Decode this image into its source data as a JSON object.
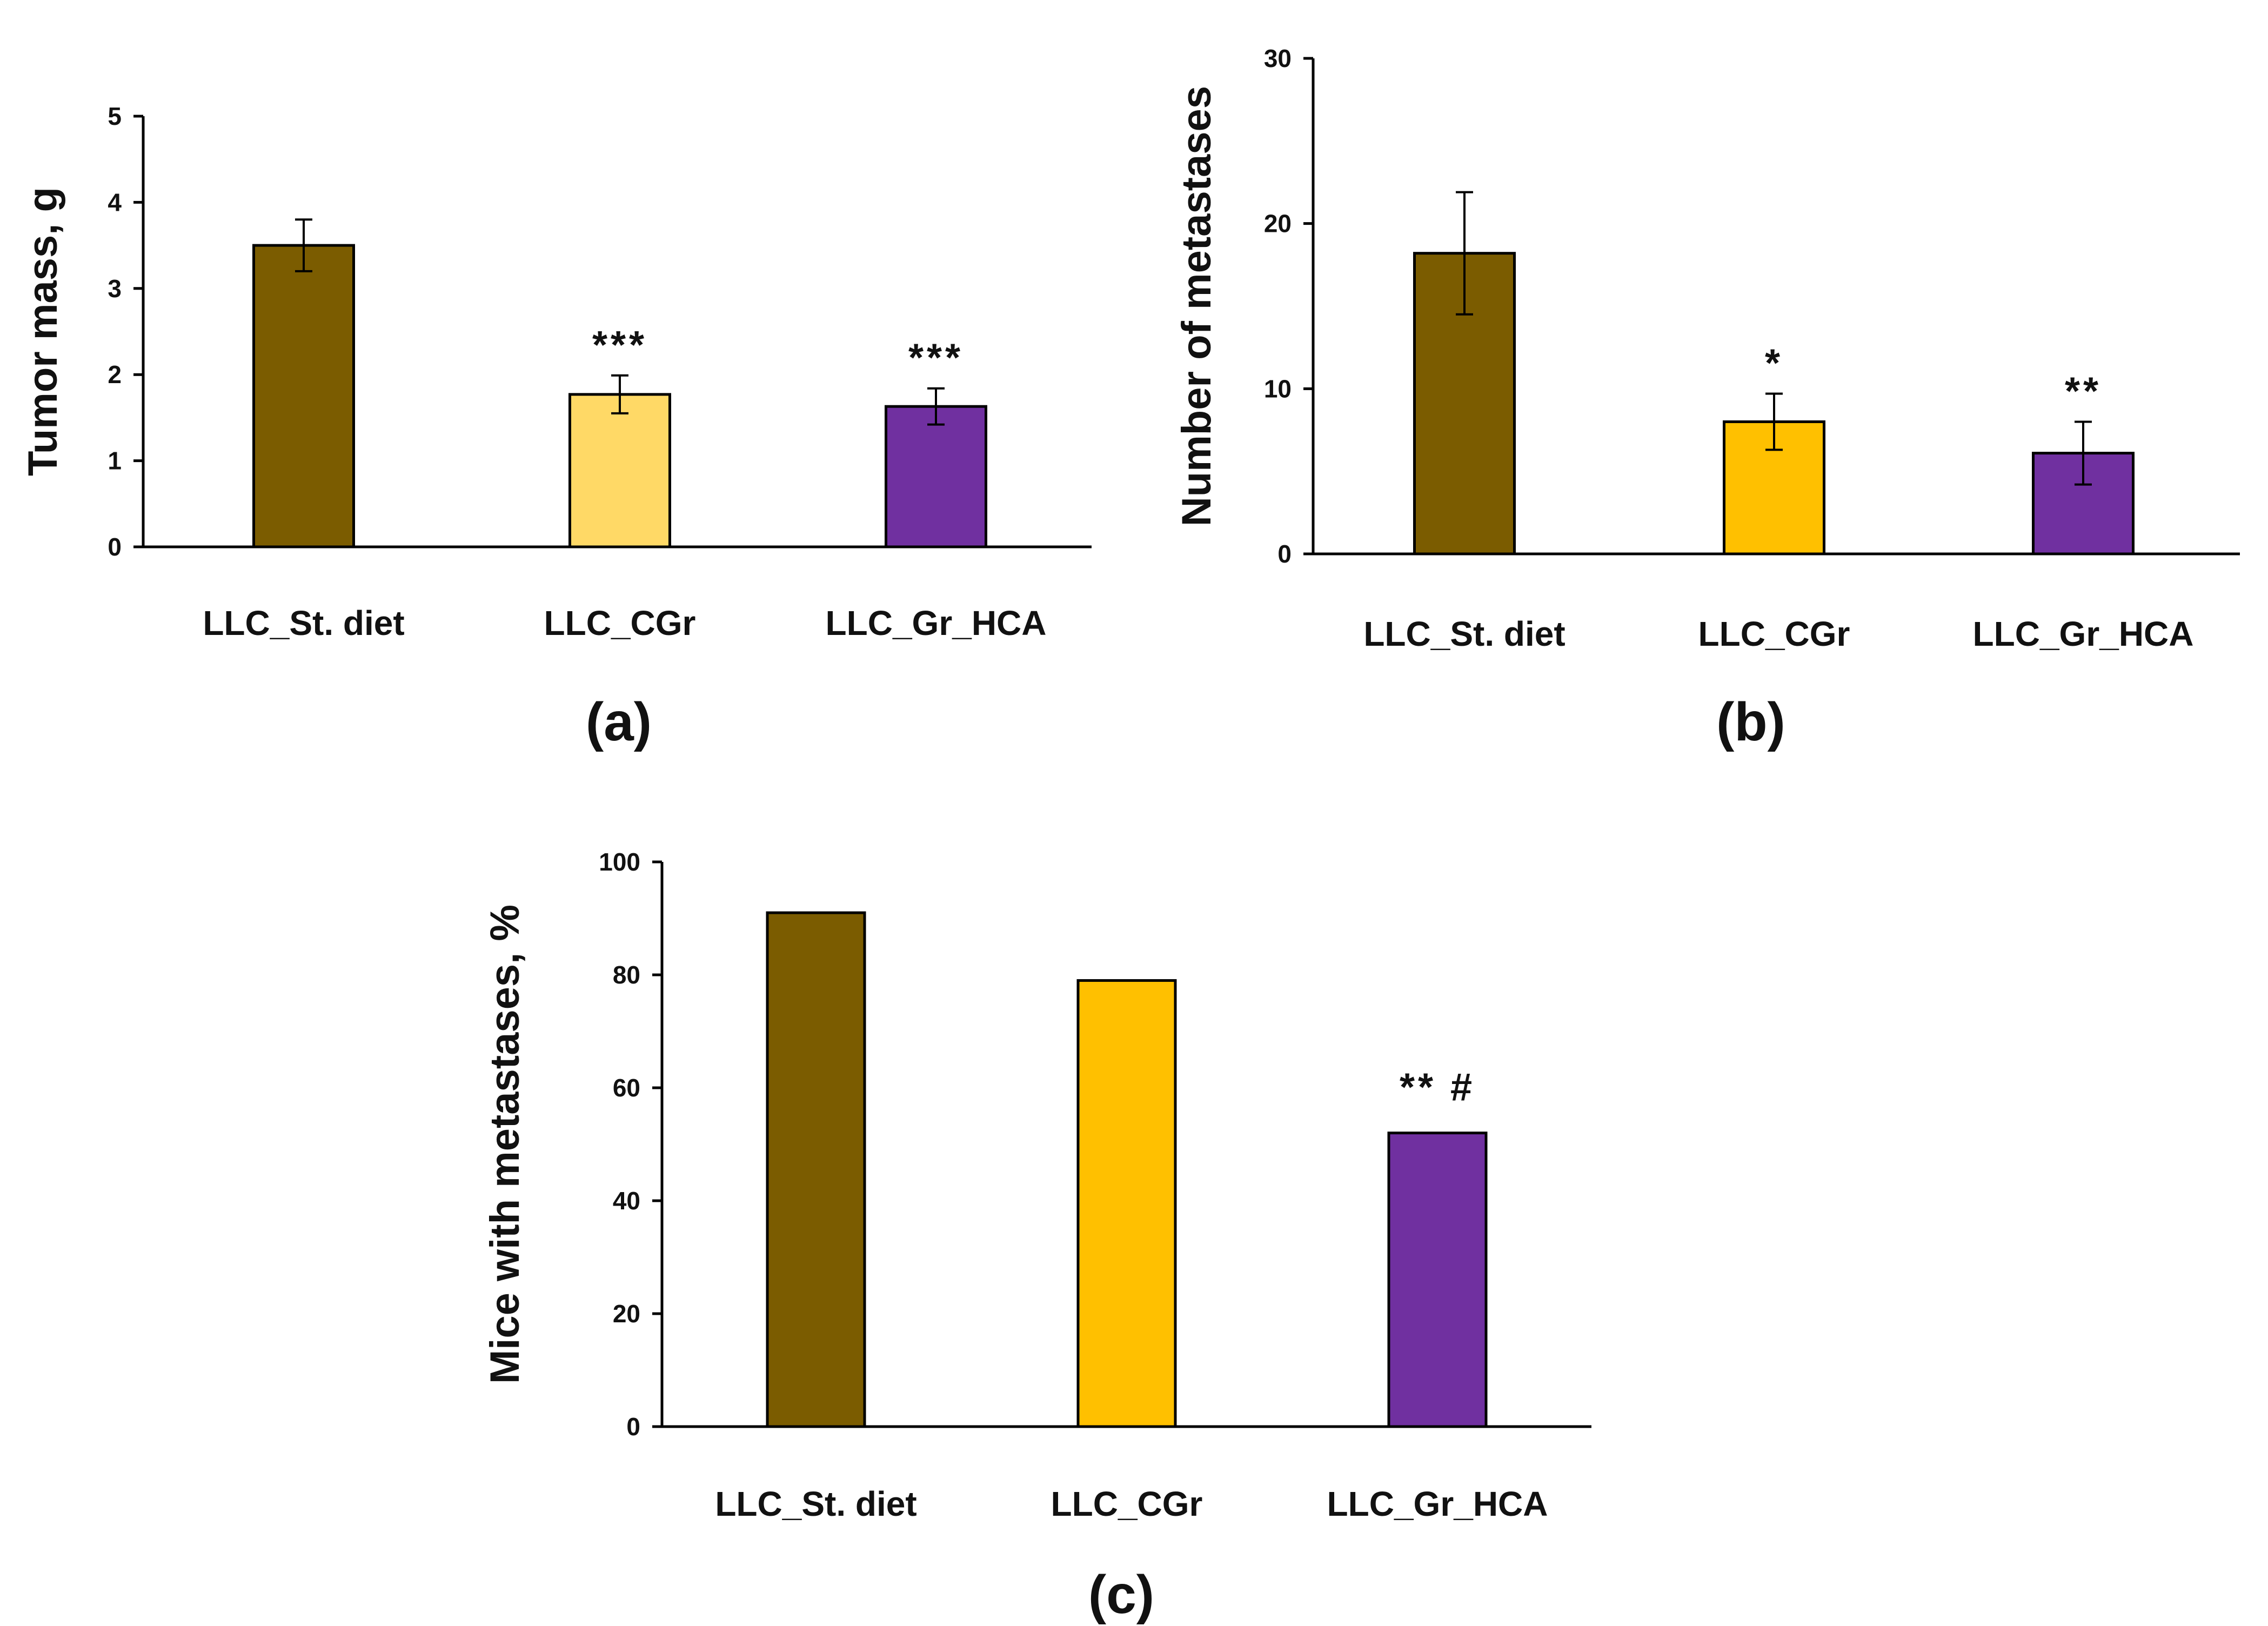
{
  "chart_data": [
    {
      "type": "bar",
      "panel_label": "(a)",
      "ylabel": "Tumor mass, g",
      "xlabel": "",
      "ylim": [
        0,
        5
      ],
      "yticks": [
        0,
        1,
        2,
        3,
        4,
        5
      ],
      "categories": [
        "LLC_St. diet",
        "LLC_CGr",
        "LLC_Gr_HCA"
      ],
      "values": [
        3.5,
        1.77,
        1.63
      ],
      "errors": [
        0.3,
        0.22,
        0.21
      ],
      "colors": [
        "#7b5c00",
        "#ffd966",
        "#7030a0"
      ],
      "annotations": [
        "",
        "***",
        "***"
      ]
    },
    {
      "type": "bar",
      "panel_label": "(b)",
      "ylabel": "Number of metastases",
      "xlabel": "",
      "ylim": [
        0,
        30
      ],
      "yticks": [
        0,
        10,
        20,
        30
      ],
      "categories": [
        "LLC_St. diet",
        "LLC_CGr",
        "LLC_Gr_HCA"
      ],
      "values": [
        18.2,
        8.0,
        6.1
      ],
      "errors": [
        3.7,
        1.7,
        1.9
      ],
      "colors": [
        "#7b5c00",
        "#ffc000",
        "#7030a0"
      ],
      "annotations": [
        "",
        "*",
        "**"
      ]
    },
    {
      "type": "bar",
      "panel_label": "(c)",
      "ylabel": "Mice with metastases, %",
      "xlabel": "",
      "ylim": [
        0,
        100
      ],
      "yticks": [
        0,
        20,
        40,
        60,
        80,
        100
      ],
      "categories": [
        "LLC_St. diet",
        "LLC_CGr",
        "LLC_Gr_HCA"
      ],
      "values": [
        91,
        79,
        52
      ],
      "errors": null,
      "colors": [
        "#7b5c00",
        "#ffc000",
        "#7030a0"
      ],
      "annotations": [
        "",
        "",
        "** #"
      ]
    }
  ]
}
